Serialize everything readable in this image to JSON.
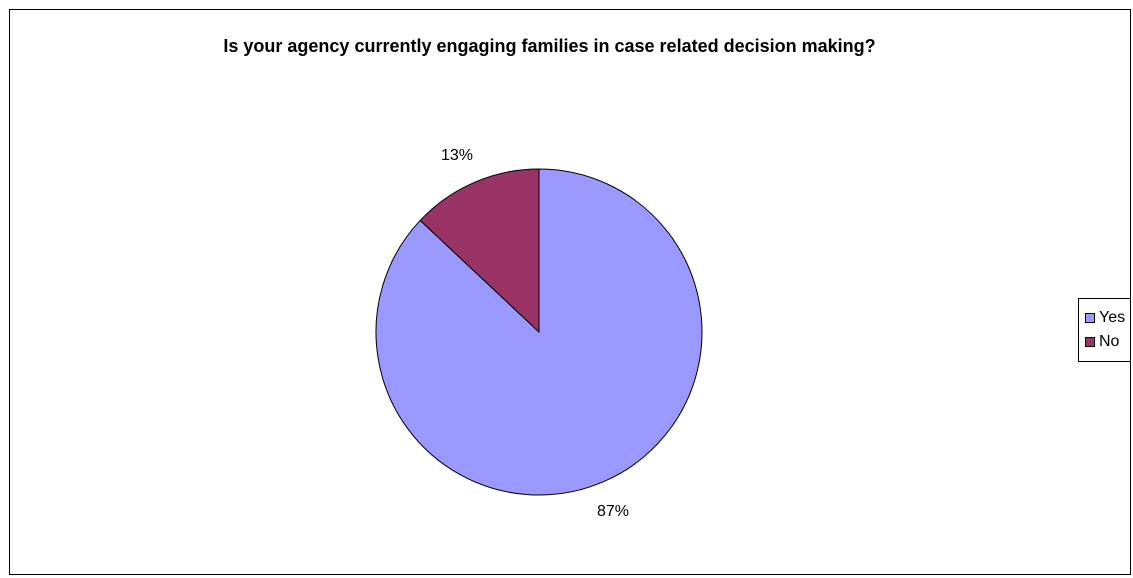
{
  "chart_data": {
    "type": "pie",
    "title": "Is your agency currently engaging families in case related decision making?",
    "slices": [
      {
        "name": "Yes",
        "value": 87,
        "label": "87%",
        "color": "#9999ff"
      },
      {
        "name": "No",
        "value": 13,
        "label": "13%",
        "color": "#993366"
      }
    ],
    "legend_placement": "right"
  }
}
